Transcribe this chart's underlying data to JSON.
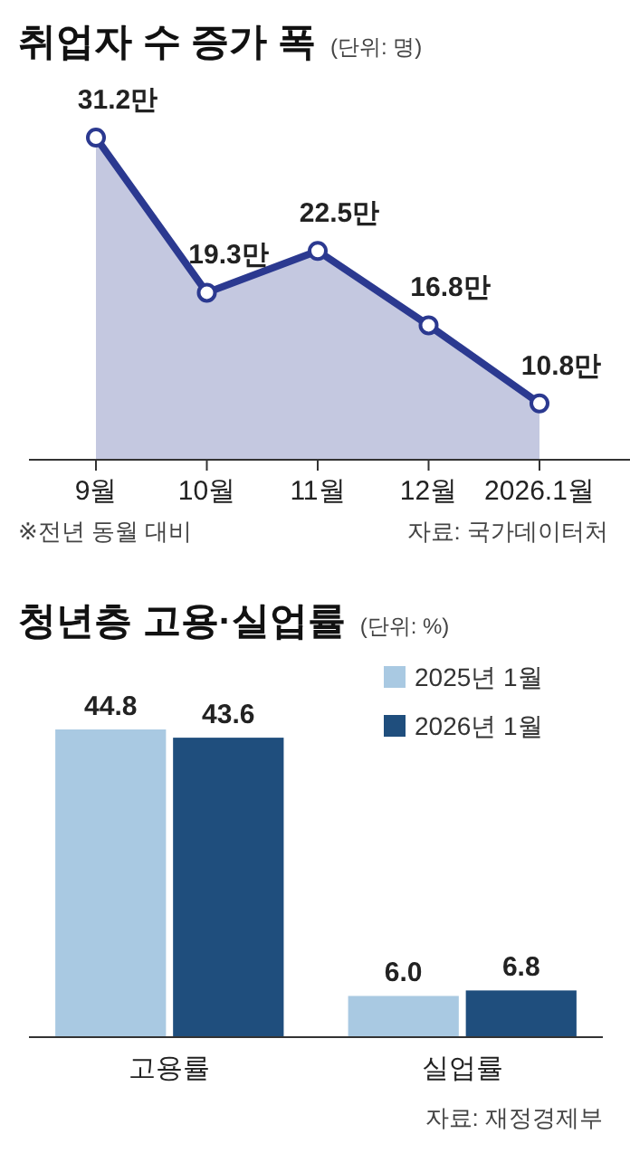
{
  "chart_data": [
    {
      "type": "area",
      "title": "취업자 수 증가 폭",
      "subtitle": "(단위: 명)",
      "categories": [
        "9월",
        "10월",
        "11월",
        "12월",
        "2026.1월"
      ],
      "series": [
        {
          "color": "#2b3990",
          "values": [
            31.2,
            19.3,
            22.5,
            16.8,
            10.8
          ],
          "value_labels": [
            "31.2만",
            "19.3만",
            "22.5만",
            "16.8만",
            "10.8만"
          ]
        }
      ],
      "marker": "circle",
      "annotations": [
        "※전년 동월 대비",
        "자료: 국가데이터처"
      ]
    },
    {
      "type": "bar",
      "title": "청년층 고용·실업률",
      "subtitle": "(단위: %)",
      "categories": [
        "고용률",
        "실업률"
      ],
      "series": [
        {
          "name": "2025년 1월",
          "color": "#a9c9e2",
          "values": [
            44.8,
            6.0
          ],
          "value_labels": [
            "44.8",
            "6.0"
          ]
        },
        {
          "name": "2026년 1월",
          "color": "#1f4e7d",
          "values": [
            43.6,
            6.8
          ],
          "value_labels": [
            "43.6",
            "6.8"
          ]
        }
      ],
      "legend": "top right",
      "annotations": [
        "자료: 재정경제부"
      ]
    }
  ]
}
